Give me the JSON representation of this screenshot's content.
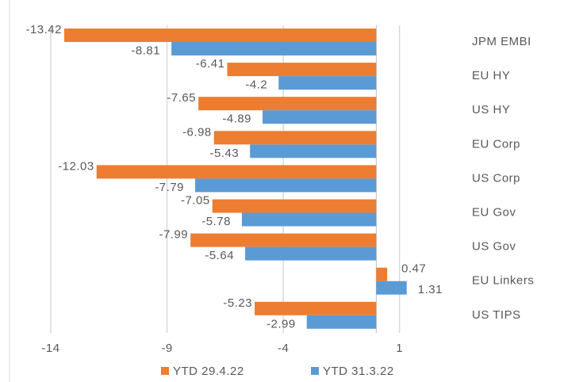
{
  "chart_data": {
    "type": "hbar",
    "categories": [
      "JPM EMBI",
      "EU HY",
      "US HY",
      "EU Corp",
      "US Corp",
      "EU Gov",
      "US Gov",
      "EU Linkers",
      "US TIPS"
    ],
    "series": [
      {
        "name": "YTD 29.4.22",
        "color": "#ed7d31",
        "values": [
          -13.42,
          -6.41,
          -7.65,
          -6.98,
          -12.03,
          -7.05,
          -7.99,
          0.47,
          -5.23
        ]
      },
      {
        "name": "YTD 31.3.22",
        "color": "#5b9bd5",
        "values": [
          -8.81,
          -4.2,
          -4.89,
          -5.43,
          -7.79,
          -5.78,
          -5.64,
          1.31,
          -2.99
        ]
      }
    ],
    "xlim": [
      -14,
      2
    ],
    "xticks": [
      -14,
      -9,
      -4,
      1
    ],
    "grid": true,
    "legend": "bottom"
  }
}
